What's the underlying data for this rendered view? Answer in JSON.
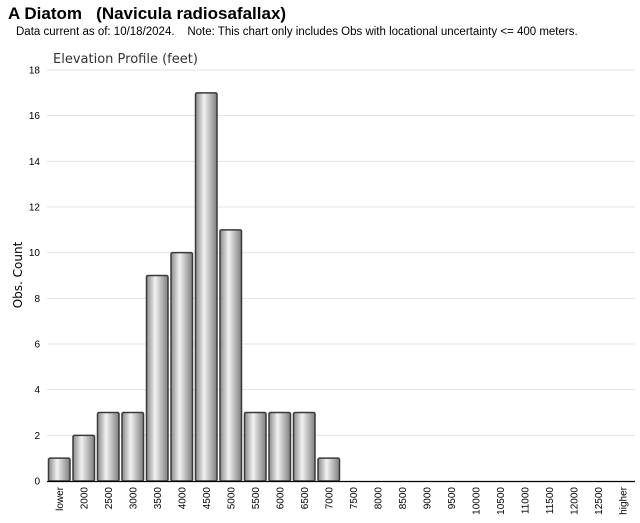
{
  "header": {
    "title": "A Diatom   (Navicula radiosafallax)",
    "note": "Data current as of: 10/18/2024.    Note: This chart only includes Obs with locational uncertainty <= 400 meters."
  },
  "chart_data": {
    "type": "bar",
    "title": "Elevation Profile (feet)",
    "xlabel": "",
    "ylabel": "Obs. Count",
    "ylim": [
      0,
      18
    ],
    "yticks": [
      0,
      2,
      4,
      6,
      8,
      10,
      12,
      14,
      16,
      18
    ],
    "grid": true,
    "categories": [
      "lower",
      "2000",
      "2500",
      "3000",
      "3500",
      "4000",
      "4500",
      "5000",
      "5500",
      "6000",
      "6500",
      "7000",
      "7500",
      "8000",
      "8500",
      "9000",
      "9500",
      "10000",
      "10500",
      "11000",
      "11500",
      "12000",
      "12500",
      "higher"
    ],
    "values": [
      1,
      2,
      3,
      3,
      9,
      10,
      17,
      11,
      3,
      3,
      3,
      1,
      0,
      0,
      0,
      0,
      0,
      0,
      0,
      0,
      0,
      0,
      0,
      0
    ]
  }
}
